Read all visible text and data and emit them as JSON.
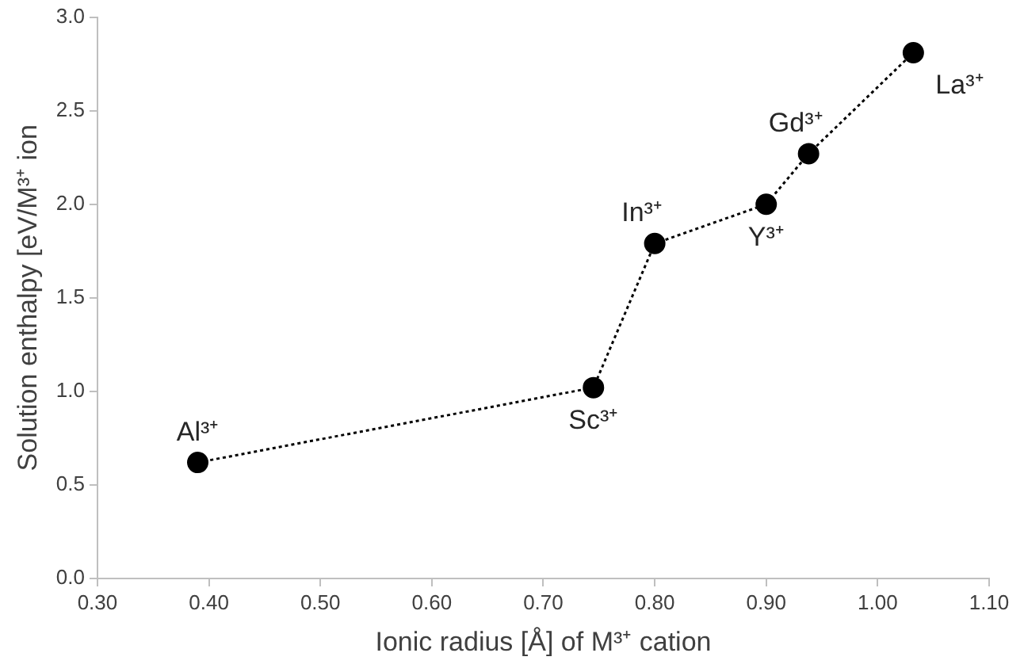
{
  "chart_data": {
    "type": "line",
    "xlabel": "Ionic radius [Å] of M³⁺ cation",
    "ylabel": "Solution enthalpy [eV/M³⁺ ion",
    "x": [
      0.39,
      0.745,
      0.8,
      0.9,
      0.938,
      1.032
    ],
    "series": [
      {
        "color": "#000000",
        "values": [
          0.62,
          1.02,
          1.79,
          2.0,
          2.27,
          2.81
        ]
      }
    ],
    "xlim": [
      0.3,
      1.1
    ],
    "xticks": [
      {
        "value": 0.3,
        "label": "0.30"
      },
      {
        "value": 0.4,
        "label": "0.40"
      },
      {
        "value": 0.5,
        "label": "0.50"
      },
      {
        "value": 0.6,
        "label": "0.60"
      },
      {
        "value": 0.7,
        "label": "0.70"
      },
      {
        "value": 0.8,
        "label": "0.80"
      },
      {
        "value": 0.9,
        "label": "0.90"
      },
      {
        "value": 1.0,
        "label": "1.00"
      },
      {
        "value": 1.1,
        "label": "1.10"
      }
    ],
    "ylim": [
      0,
      3
    ],
    "yticks": [
      {
        "value": 0,
        "label": "0.0"
      },
      {
        "value": 0.5,
        "label": "0.5"
      },
      {
        "value": 1,
        "label": "1.0"
      },
      {
        "value": 1.5,
        "label": "1.5"
      },
      {
        "value": 2,
        "label": "2.0"
      },
      {
        "value": 2.5,
        "label": "2.5"
      },
      {
        "value": 3,
        "label": "3.0"
      }
    ],
    "grid": false,
    "legend": false,
    "marker": "circle",
    "line_style": "dotted",
    "annotations": [
      {
        "text": "Al³⁺",
        "x": 0.39,
        "y": 0.62
      },
      {
        "text": "Sc³⁺",
        "x": 0.745,
        "y": 1.02
      },
      {
        "text": "In³⁺",
        "x": 0.8,
        "y": 1.79
      },
      {
        "text": "Y³⁺",
        "x": 0.9,
        "y": 2.0
      },
      {
        "text": "Gd³⁺",
        "x": 0.938,
        "y": 2.27
      },
      {
        "text": "La³⁺",
        "x": 1.032,
        "y": 2.81
      }
    ]
  }
}
